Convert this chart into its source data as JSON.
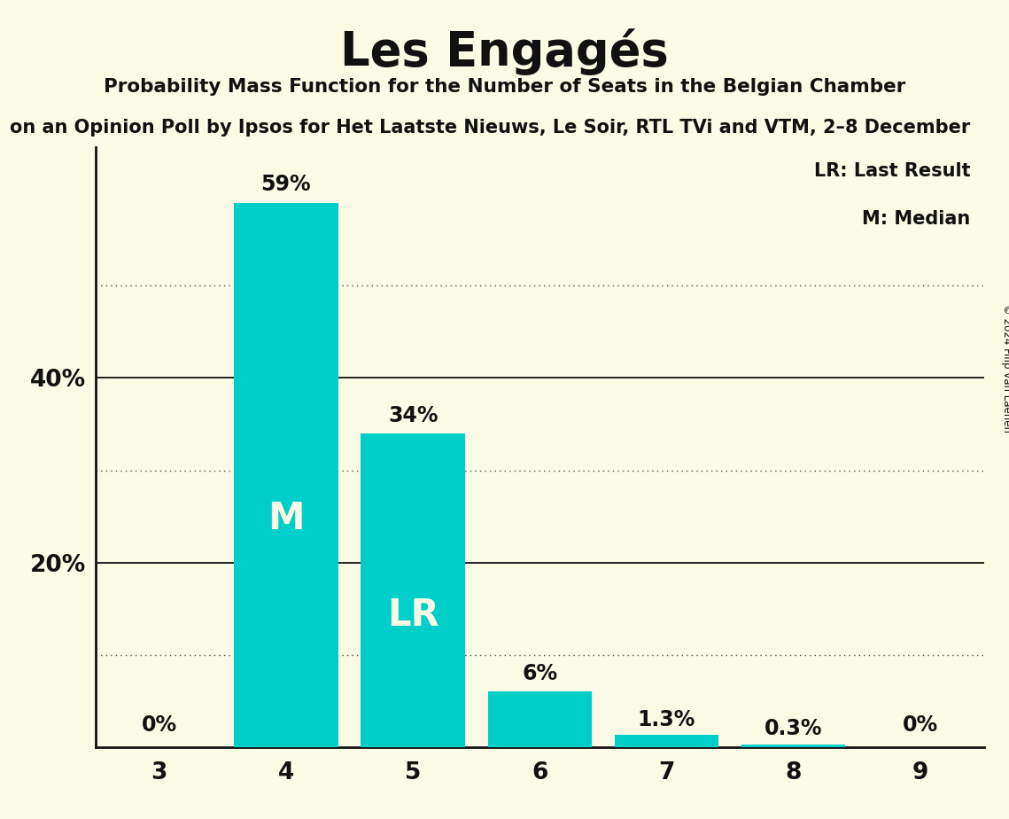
{
  "title": "Les Engagés",
  "subtitle1": "Probability Mass Function for the Number of Seats in the Belgian Chamber",
  "subtitle2": "on an Opinion Poll by Ipsos for Het Laatste Nieuws, Le Soir, RTL TVi and VTM, 2–8 December",
  "copyright": "© 2024 Filip van Laenen",
  "categories": [
    3,
    4,
    5,
    6,
    7,
    8,
    9
  ],
  "values": [
    0.0,
    59.0,
    34.0,
    6.0,
    1.3,
    0.3,
    0.0
  ],
  "bar_color": "#00CEC8",
  "background_color": "#FAFAE5",
  "text_color": "#111111",
  "bar_labels": [
    "0%",
    "59%",
    "34%",
    "6%",
    "1.3%",
    "0.3%",
    "0%"
  ],
  "median_bar": 4,
  "last_result_bar": 5,
  "median_label": "M",
  "lr_label": "LR",
  "legend_lr": "LR: Last Result",
  "legend_m": "M: Median",
  "yticks": [
    20,
    40
  ],
  "ytick_labels": [
    "20%",
    "40%"
  ],
  "dotted_lines": [
    10,
    30,
    50
  ],
  "solid_lines": [
    20,
    40
  ],
  "ylim_max": 65,
  "xlim": [
    2.5,
    9.5
  ]
}
